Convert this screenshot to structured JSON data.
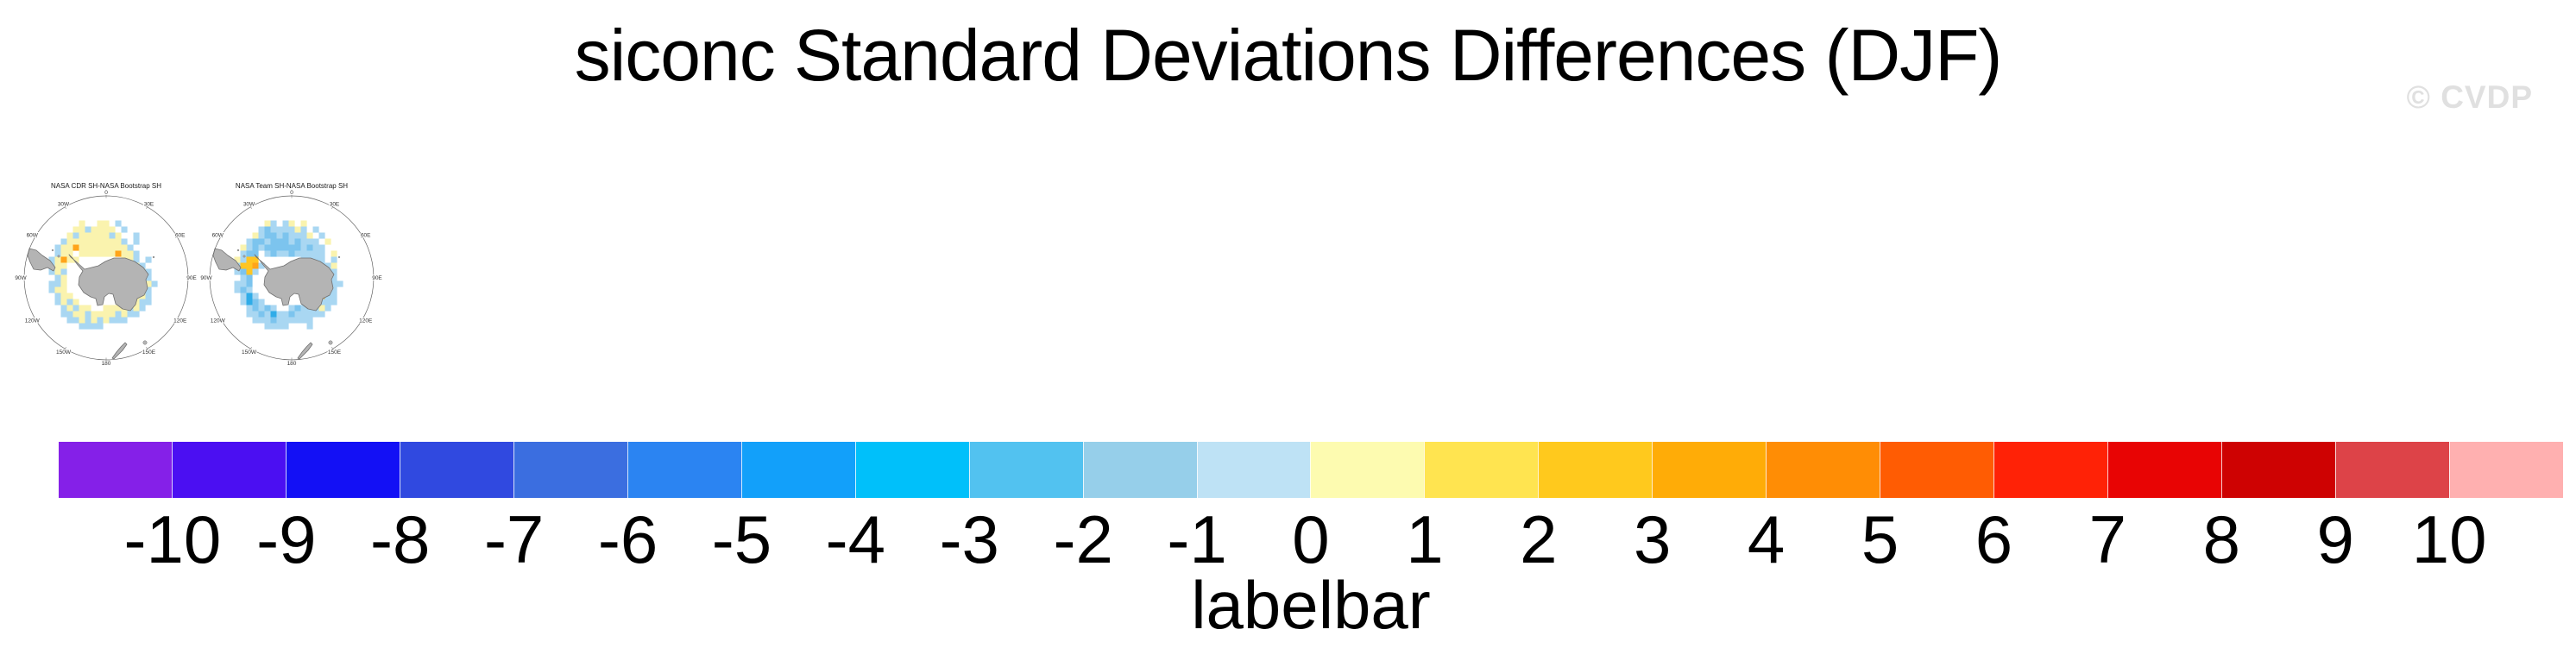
{
  "header": {
    "title": "siconc Standard Deviations Differences (DJF)",
    "watermark": "© CVDP"
  },
  "maps": [
    {
      "title": "NASA CDR SH-NASA Bootstrap SH",
      "lon_labels": [
        "0",
        "30E",
        "60E",
        "90E",
        "120E",
        "150E",
        "180",
        "150W",
        "120W",
        "90W",
        "60W",
        "30W"
      ],
      "grid": [
        ".....................",
        "......y..yy.b........",
        ".....yybyyyy.b.......",
        "....ybyyyyyby..b.....",
        "...byyyyyyyyyb.b.....",
        "..byyoyyyyyyyyb......",
        "..byy.yyyyyyoyyb.....",
        ".byoyy.......yyb.b...",
        ".byy...........yb....",
        ".byb............yb...",
        "..by............yb...",
        ".bby............ryb..",
        ".byy...........yyb...",
        "..byy..........yyb...",
        "..byby........yybb...",
        "...bybyy..yyyybyb....",
        "...bbyybyyyybybb.....",
        "....bbybybybbb.......",
        "......bbbb...........",
        ".....................",
        "....................."
      ]
    },
    {
      "title": "NASA Team SH-NASA Bootstrap SH",
      "lon_labels": [
        "0",
        "30E",
        "60E",
        "90E",
        "120E",
        "150E",
        "180",
        "150W",
        "120W",
        "90W",
        "60W",
        "30W"
      ],
      "grid": [
        ".....................",
        "......yb.by.y........",
        ".....bBbbbbyb.b......",
        "....ybBBbBbbby.b.....",
        "...bBBbBBBbBbbb.y....",
        "..ybBbBBBBBBbBbb.....",
        "..bBB.bBbbBbbbbb.y...",
        ".ybgg.......bbbb.b...",
        ".bggob.........bby...",
        ".bBgb...........bb...",
        "..bB............bb...",
        ".bbB............obb..",
        ".bBb...........ybb...",
        "..bCb..........obb...",
        "..bCBb........bbbb...",
        "...bBbBb..bBbbbyb....",
        "...bbBbCbbBbbbbb.....",
        "....bbbBbbbbbb.......",
        "......bbbb...b.......",
        ".....................",
        "....................."
      ]
    }
  ],
  "map_legend": {
    "cell_colors": {
      "y": "#FAF3AE",
      "b": "#A9D7F2",
      "B": "#7CC4EE",
      "C": "#2FACE8",
      "o": "#FFA41A",
      "g": "#FFC522",
      "r": "#EE1111"
    },
    "land_fill": "#B4B4B4",
    "land_stroke": "#707070",
    "circle_stroke": "#666666"
  },
  "colorbar": {
    "title": "labelbar",
    "tick_labels": [
      "-10",
      "-9",
      "-8",
      "-7",
      "-6",
      "-5",
      "-4",
      "-3",
      "-2",
      "-1",
      "0",
      "1",
      "2",
      "3",
      "4",
      "5",
      "6",
      "7",
      "8",
      "9",
      "10"
    ],
    "colors": [
      "#8520E8",
      "#4B0FF2",
      "#1310F5",
      "#3049E0",
      "#3B6EE0",
      "#2B84F2",
      "#12A0FA",
      "#00C0FA",
      "#52C2F0",
      "#96CFEA",
      "#BEE2F5",
      "#FDFBB0",
      "#FFE450",
      "#FFC91D",
      "#FFAC07",
      "#FF8D05",
      "#FF5C03",
      "#FF2206",
      "#E80404",
      "#CE0202",
      "#DD4348",
      "#FFB0B0"
    ]
  },
  "chart_data": {
    "type": "heatmap",
    "title": "siconc Standard Deviations Differences (DJF)",
    "panels": [
      "NASA CDR SH-NASA Bootstrap SH",
      "NASA Team SH-NASA Bootstrap SH"
    ],
    "colorbar_label": "labelbar",
    "colorbar_ticks": [
      -10,
      -9,
      -8,
      -7,
      -6,
      -5,
      -4,
      -3,
      -2,
      -1,
      0,
      1,
      2,
      3,
      4,
      5,
      6,
      7,
      8,
      9,
      10
    ],
    "colorbar_colors": [
      "#8520E8",
      "#4B0FF2",
      "#1310F5",
      "#3049E0",
      "#3B6EE0",
      "#2B84F2",
      "#12A0FA",
      "#00C0FA",
      "#52C2F0",
      "#96CFEA",
      "#BEE2F5",
      "#FDFBB0",
      "#FFE450",
      "#FFC91D",
      "#FFAC07",
      "#FF8D05",
      "#FF5C03",
      "#FF2206",
      "#E80404",
      "#CE0202",
      "#DD4348",
      "#FFB0B0"
    ],
    "legend_position": "bottom"
  }
}
